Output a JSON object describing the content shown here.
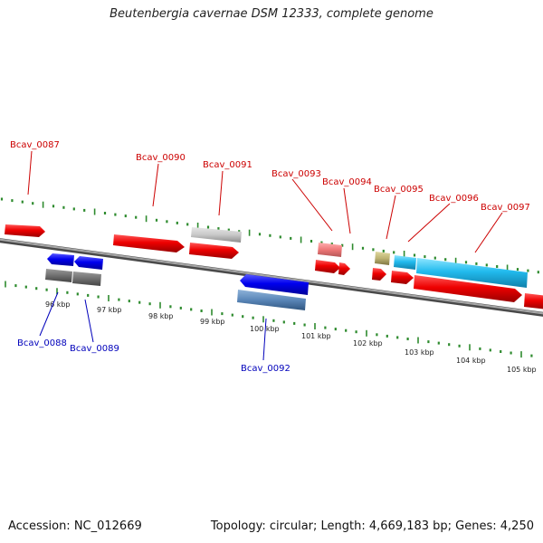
{
  "title": "Beutenbergia cavernae DSM 12333, complete genome",
  "footer": {
    "accession": "Accession: NC_012669",
    "summary": "Topology: circular; Length: 4,669,183 bp; Genes: 4,250"
  },
  "colors": {
    "ruler_tick": "#2e8b2e",
    "backbone": "#7a7a7a",
    "forward_label": "#cc0000",
    "reverse_label": "#0000bb"
  },
  "kbp_labels": [
    "96 kbp",
    "97 kbp",
    "98 kbp",
    "99 kbp",
    "100 kbp",
    "101 kbp",
    "102 kbp",
    "103 kbp",
    "104 kbp",
    "105 kbp"
  ],
  "forward_gene_labels": [
    "Bcav_0087",
    "Bcav_0090",
    "Bcav_0091",
    "Bcav_0093",
    "Bcav_0094",
    "Bcav_0095",
    "Bcav_0096",
    "Bcav_0097"
  ],
  "reverse_gene_labels": [
    "Bcav_0088",
    "Bcav_0089",
    "Bcav_0092"
  ]
}
